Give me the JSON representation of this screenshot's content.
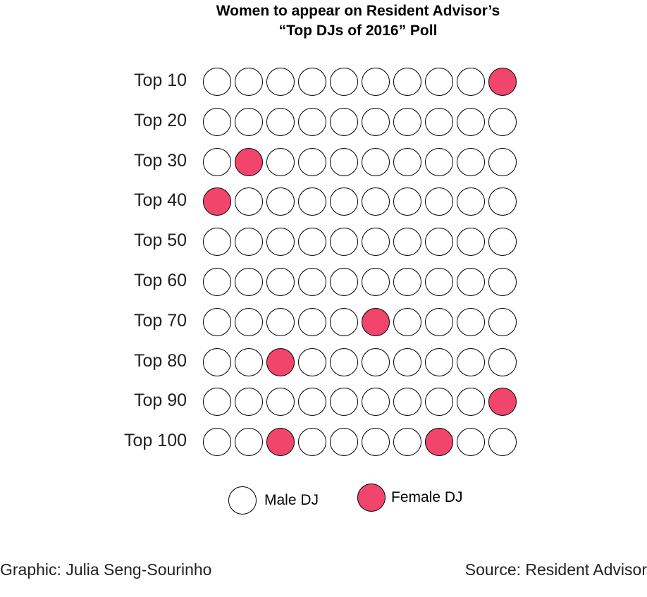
{
  "title_line1": "Women to appear on Resident Advisor’s",
  "title_line2": "“Top DJs of 2016” Poll",
  "colors": {
    "female": "#f2456c",
    "male": "#ffffff",
    "outline": "#000000"
  },
  "chart_data": {
    "type": "dot-matrix",
    "title": "Women to appear on Resident Advisor’s “Top DJs of 2016” Poll",
    "rows": [
      {
        "label": "Top 10",
        "female_positions": [
          10
        ]
      },
      {
        "label": "Top 20",
        "female_positions": []
      },
      {
        "label": "Top 30",
        "female_positions": [
          2
        ]
      },
      {
        "label": "Top 40",
        "female_positions": [
          1
        ]
      },
      {
        "label": "Top 50",
        "female_positions": []
      },
      {
        "label": "Top 60",
        "female_positions": []
      },
      {
        "label": "Top 70",
        "female_positions": [
          6
        ]
      },
      {
        "label": "Top 80",
        "female_positions": [
          3
        ]
      },
      {
        "label": "Top 90",
        "female_positions": [
          10
        ]
      },
      {
        "label": "Top 100",
        "female_positions": [
          3,
          8
        ]
      }
    ],
    "columns": 10,
    "legend": [
      {
        "label": "Male DJ",
        "color": "#ffffff"
      },
      {
        "label": "Female DJ",
        "color": "#f2456c"
      }
    ]
  },
  "footer": {
    "credit": "Graphic: Julia Seng-Sourinho",
    "source": "Source: Resident Advisor"
  }
}
